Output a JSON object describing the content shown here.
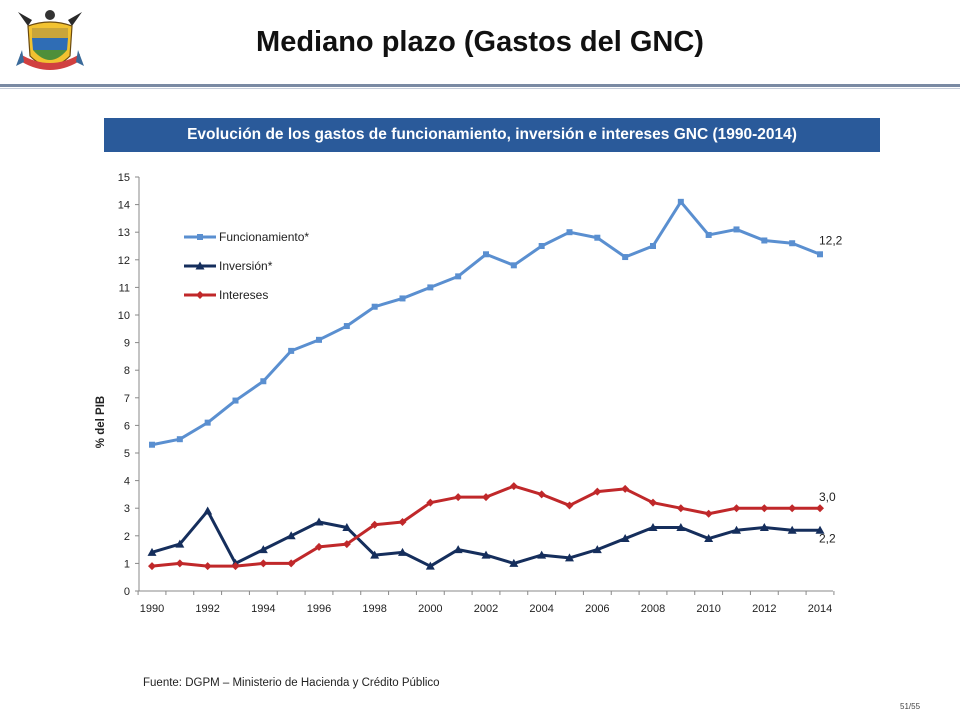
{
  "header": {
    "title": "Mediano plazo (Gastos del GNC)"
  },
  "banner": {
    "text": "Evolución de los gastos de funcionamiento, inversión e intereses GNC (1990-2014)"
  },
  "footer": {
    "source": "Fuente: DGPM – Ministerio de Hacienda y Crédito Público",
    "page": "51/55"
  },
  "colors": {
    "banner": "#2a5a9a",
    "funcionamiento": "#5a8fd0",
    "inversion": "#152e5c",
    "intereses": "#c0282a"
  },
  "chart_data": {
    "type": "line",
    "title": "",
    "xlabel": "",
    "ylabel": "% del PIB",
    "x": [
      1990,
      1991,
      1992,
      1993,
      1994,
      1995,
      1996,
      1997,
      1998,
      1999,
      2000,
      2001,
      2002,
      2003,
      2004,
      2005,
      2006,
      2007,
      2008,
      2009,
      2010,
      2011,
      2012,
      2013,
      2014
    ],
    "xticks": [
      "1990",
      "1992",
      "1994",
      "1996",
      "1998",
      "2000",
      "2002",
      "2004",
      "2006",
      "2008",
      "2010",
      "2012",
      "2014"
    ],
    "yticks": [
      "0",
      "1",
      "2",
      "3",
      "4",
      "5",
      "6",
      "7",
      "8",
      "9",
      "10",
      "11",
      "12",
      "13",
      "14",
      "15"
    ],
    "ylim": [
      0,
      15
    ],
    "legend_position": "top-left",
    "series": [
      {
        "name": "Funcionamiento*",
        "color": "#5a8fd0",
        "marker": "square",
        "values": [
          5.3,
          5.5,
          6.1,
          6.9,
          7.6,
          8.7,
          9.1,
          9.6,
          10.3,
          10.6,
          11.0,
          11.4,
          12.2,
          11.8,
          12.5,
          13.0,
          12.8,
          12.1,
          12.5,
          14.1,
          12.9,
          13.1,
          12.7,
          12.6,
          12.2
        ],
        "end_label": "12,2"
      },
      {
        "name": "Inversión*",
        "color": "#152e5c",
        "marker": "triangle",
        "values": [
          1.4,
          1.7,
          2.9,
          1.0,
          1.5,
          2.0,
          2.5,
          2.3,
          1.3,
          1.4,
          0.9,
          1.5,
          1.3,
          1.0,
          1.3,
          1.2,
          1.5,
          1.9,
          2.3,
          2.3,
          1.9,
          2.2,
          2.3,
          2.2,
          2.2
        ],
        "end_label": "2,2"
      },
      {
        "name": "Intereses",
        "color": "#c0282a",
        "marker": "diamond",
        "values": [
          0.9,
          1.0,
          0.9,
          0.9,
          1.0,
          1.0,
          1.6,
          1.7,
          2.4,
          2.5,
          3.2,
          3.4,
          3.4,
          3.8,
          3.5,
          3.1,
          3.6,
          3.7,
          3.2,
          3.0,
          2.8,
          3.0,
          3.0,
          3.0,
          3.0
        ],
        "end_label": "3,0"
      }
    ]
  }
}
